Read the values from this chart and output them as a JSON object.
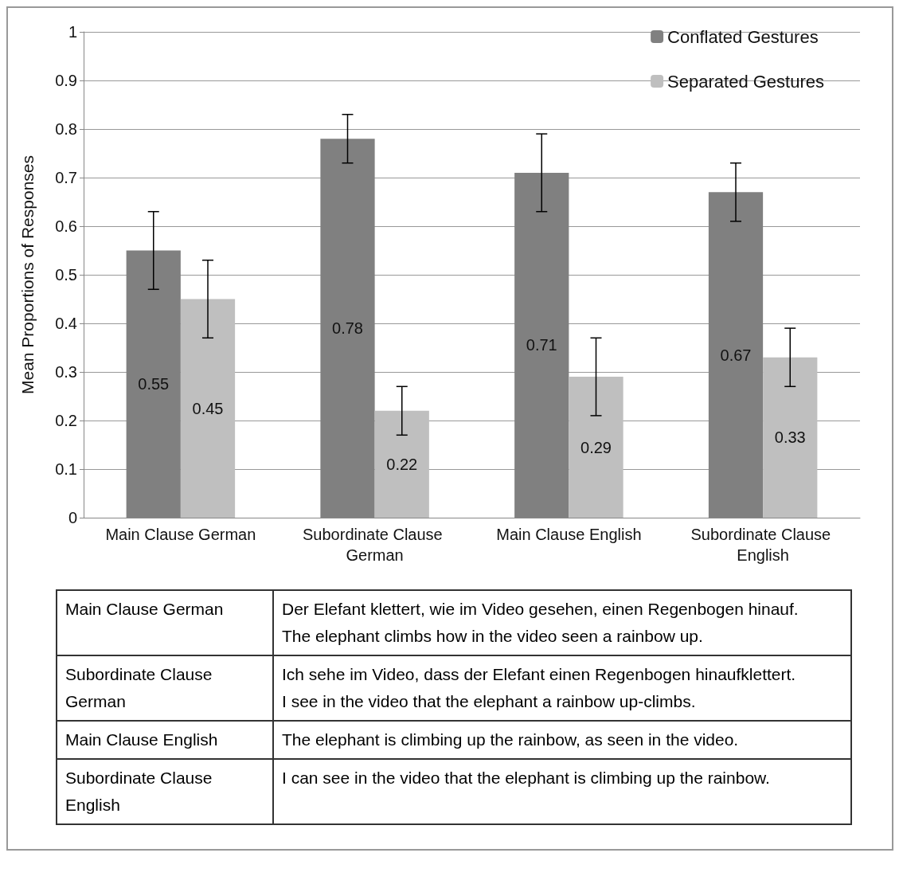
{
  "chart_data": {
    "type": "bar",
    "ylabel": "Mean Proportions of Responses",
    "categories": [
      "Main Clause German",
      "Subordinate Clause German",
      "Main Clause English",
      "Subordinate Clause English"
    ],
    "series": [
      {
        "name": "Conflated Gestures",
        "color": "#808080",
        "values": [
          0.55,
          0.78,
          0.71,
          0.67
        ],
        "errors": [
          0.08,
          0.05,
          0.08,
          0.06
        ]
      },
      {
        "name": "Separated Gestures",
        "color": "#bfbfbf",
        "values": [
          0.45,
          0.22,
          0.29,
          0.33
        ],
        "errors": [
          0.08,
          0.05,
          0.08,
          0.06
        ]
      }
    ],
    "ylim": [
      0,
      1
    ],
    "yticks": [
      0,
      0.1,
      0.2,
      0.3,
      0.4,
      0.5,
      0.6,
      0.7,
      0.8,
      0.9,
      1
    ],
    "grid": "y",
    "legend": "top right",
    "data_labels": true,
    "annotations": [
      "Main Clause German",
      "Der Elefant klettert, wie im Video gesehen, einen Regenbogen hinauf.\nThe elephant climbs how in the video seen a rainbow up.",
      "Subordinate Clause German",
      "Ich sehe im Video, dass der Elefant einen Regenbogen hinaufklettert.\nI see in the video that the elephant a rainbow up-climbs.",
      "Main Clause English",
      "The elephant is climbing up the rainbow, as seen in the video.",
      "Subordinate Clause English",
      "I can see in the video that the elephant is climbing up the rainbow."
    ]
  }
}
